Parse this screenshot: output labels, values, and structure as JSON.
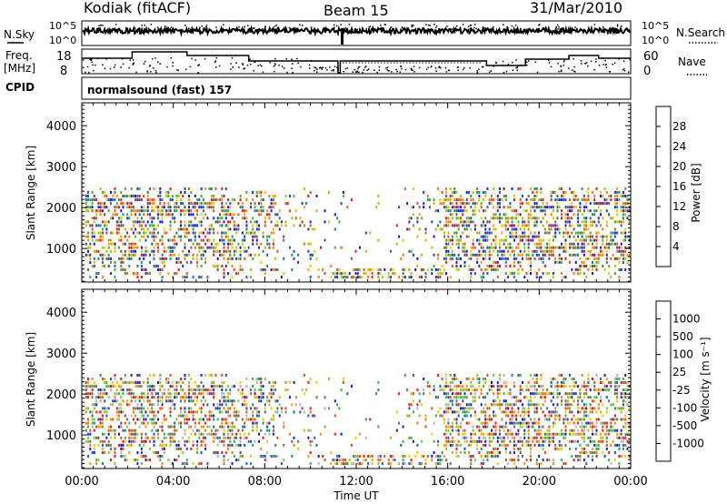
{
  "header": {
    "station": "Kodiak (fitACF)",
    "beam": "Beam 15",
    "date": "31/Mar/2010"
  },
  "sky_panel": {
    "left_label": "N.Sky",
    "left_ticks": [
      "10^5",
      "10^0"
    ],
    "right_ticks": [
      "10^5",
      "10^0"
    ],
    "right_label": "N.Search"
  },
  "freq_panel": {
    "left_label_1": "Freq.",
    "left_label_2": "[MHz]",
    "left_ticks": [
      "18",
      "8"
    ],
    "right_ticks": [
      "60",
      "0"
    ],
    "right_label": "Nave",
    "cpid_label": "CPID"
  },
  "mode_text": "normalsound (fast) 157",
  "chart_data": [
    {
      "type": "heatmap",
      "name": "power",
      "ylabel": "Slant Range [km]",
      "xlabel": "Time UT",
      "x_ticks": [
        "00:00",
        "04:00",
        "08:00",
        "12:00",
        "16:00",
        "20:00",
        "00:00"
      ],
      "xlim_hours": [
        0,
        24
      ],
      "ylim": [
        180,
        4560
      ],
      "y_ticks": [
        "1000",
        "2000",
        "3000",
        "4000"
      ],
      "y_tick_values": [
        1000,
        2000,
        3000,
        4000
      ],
      "colorbar": {
        "label": "Power [dB]",
        "labels": [
          "28",
          "24",
          "20",
          "16",
          "12",
          "8",
          "4"
        ],
        "colors": [
          "#e81a1a",
          "#f04d1a",
          "#f57a14",
          "#f5a00a",
          "#e8c800",
          "#a8cc00",
          "#44b030",
          "#2a8f5a",
          "#2e6e8a",
          "#2250b0",
          "#1f2fd8",
          "#1414f0"
        ]
      }
    },
    {
      "type": "heatmap",
      "name": "velocity",
      "ylabel": "Slant Range [km]",
      "xlabel": "Time UT",
      "x_ticks": [
        "00:00",
        "04:00",
        "08:00",
        "12:00",
        "16:00",
        "20:00",
        "00:00"
      ],
      "xlim_hours": [
        0,
        24
      ],
      "ylim": [
        180,
        4560
      ],
      "y_ticks": [
        "1000",
        "2000",
        "3000",
        "4000"
      ],
      "y_tick_values": [
        1000,
        2000,
        3000,
        4000
      ],
      "colorbar": {
        "label": "Velocity [m s⁻¹]",
        "labels": [
          "1000",
          "500",
          "100",
          "25",
          "-25",
          "-100",
          "-500",
          "-1000"
        ],
        "colors": [
          "#1a1ad8",
          "#1a58c8",
          "#2a8a78",
          "#44b040",
          "#7ccc30",
          "#b4b4b4",
          "#f5c800",
          "#f5a00a",
          "#f07a14",
          "#ec4a1a",
          "#e81a1a"
        ]
      }
    }
  ]
}
